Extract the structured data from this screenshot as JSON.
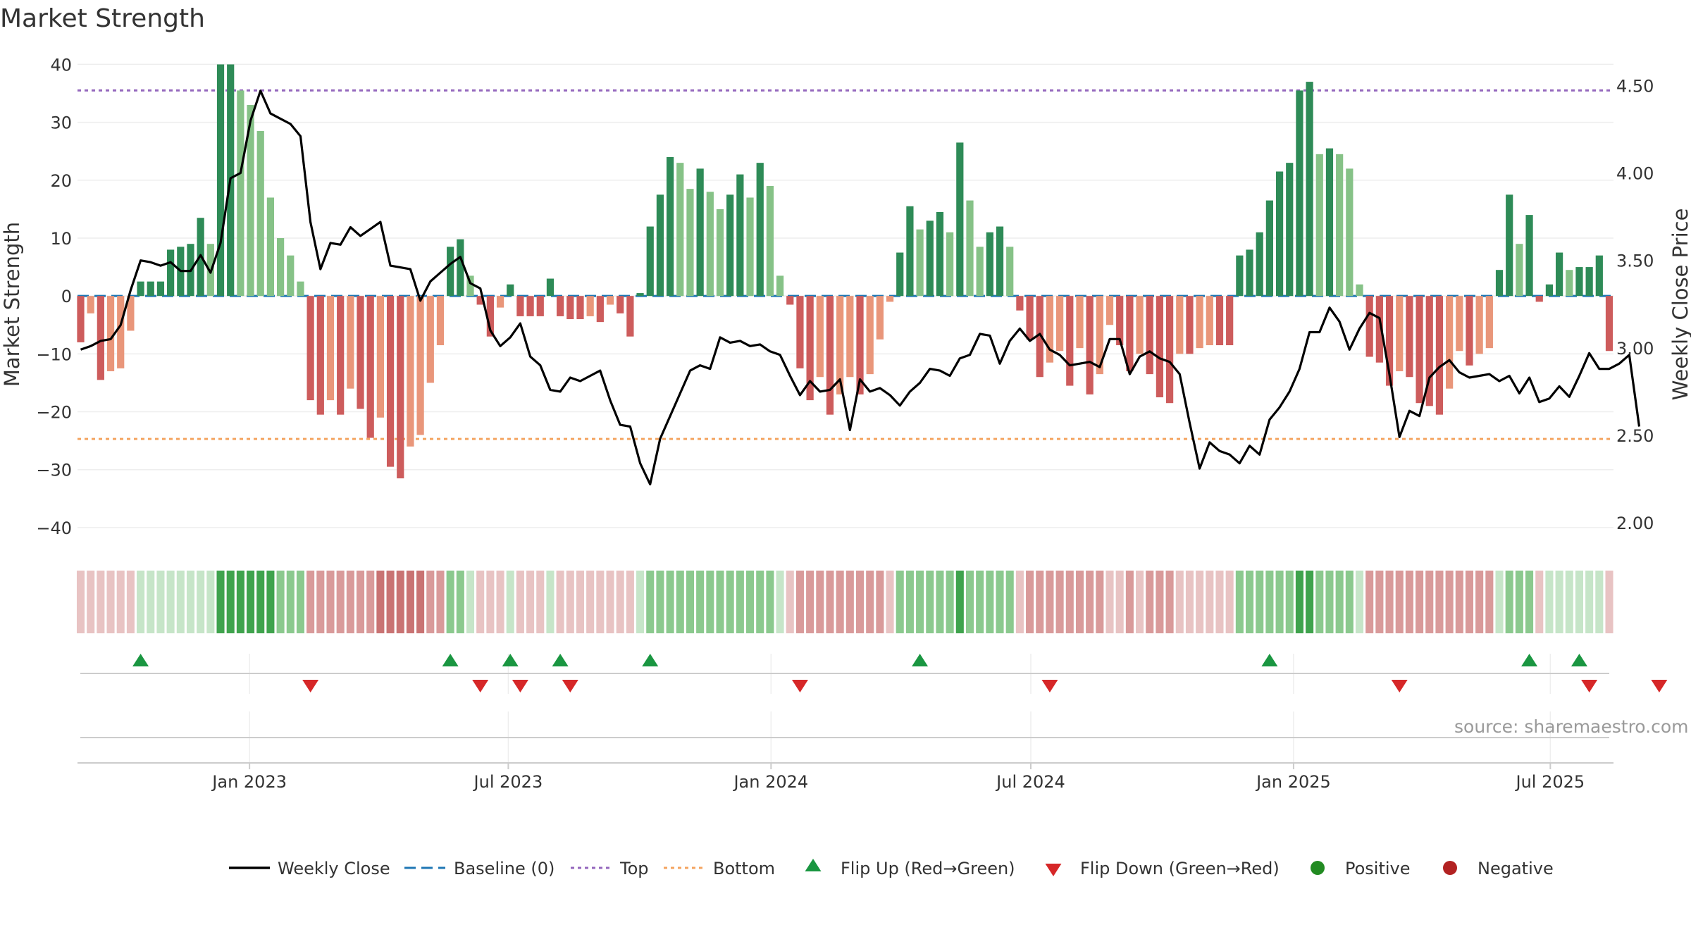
{
  "title": "Market Strength",
  "watermark": "source: sharemaestro.com",
  "colors": {
    "pos_dark": "#2e8b57",
    "pos_light": "#86c287",
    "neg_dark": "#cd5c5c",
    "neg_light": "#e9967a",
    "close": "#000000",
    "baseline": "#1f77b4",
    "top": "#9467bd",
    "bottom": "#f4a460",
    "flip_up": "#1a9641",
    "flip_down": "#d62728",
    "positive": "#228b22",
    "negative": "#b22222"
  },
  "chart_data": {
    "type": "bar",
    "title": "Market Strength",
    "ylabel": "Market Strength",
    "y2label": "Weekly Close Price",
    "ylim": [
      -45,
      42
    ],
    "y2lim": [
      1.807,
      4.687
    ],
    "yticks": [
      "40",
      "30",
      "20",
      "10",
      "0",
      "−10",
      "−20",
      "−30",
      "−40"
    ],
    "y2ticks": [
      "4.50",
      "4.00",
      "3.50",
      "3.00",
      "2.50",
      "2.00"
    ],
    "xtick_labels": [
      "Jan 2023",
      "Jul 2023",
      "Jan 2024",
      "Jul 2024",
      "Jan 2025",
      "Jul 2025"
    ],
    "xtick_weeks": [
      16.9,
      42.8,
      69.1,
      95.1,
      121.4,
      147.1
    ],
    "top_line": 35.5,
    "bottom_line": -24.7,
    "baseline": 0,
    "strength": [
      -8,
      -3,
      -14.5,
      -13,
      -12.5,
      -6,
      2.5,
      2.5,
      2.5,
      8,
      8.5,
      9,
      13.5,
      9,
      40,
      40,
      35.5,
      33,
      28.5,
      17,
      10,
      7,
      2.5,
      -18,
      -20.5,
      -18,
      -20.5,
      -16,
      -19.5,
      -24.5,
      -21,
      -29.5,
      -31.5,
      -26,
      -24,
      -15,
      -8.5,
      8.5,
      9.8,
      3.5,
      -1.5,
      -7,
      -2,
      2,
      -3.5,
      -3.5,
      -3.5,
      3,
      -3.5,
      -4,
      -4,
      -3.5,
      -4.5,
      -1.5,
      -3,
      -7,
      0.5,
      12,
      17.5,
      24,
      23,
      18.5,
      22,
      18,
      15,
      17.5,
      21,
      17,
      23,
      19,
      3.5,
      -1.5,
      -12.5,
      -18,
      -14,
      -20.5,
      -17,
      -14,
      -17,
      -13.5,
      -7.5,
      -1,
      7.5,
      15.5,
      11.5,
      13,
      14.5,
      11,
      26.5,
      16.5,
      8.5,
      11,
      12,
      8.5,
      -2.5,
      -7.5,
      -14,
      -11.5,
      -9.5,
      -15.5,
      -9,
      -17,
      -13.5,
      -5,
      -8.5,
      -13,
      -10,
      -13.5,
      -17.5,
      -18.5,
      -10,
      -10,
      -9,
      -8.5,
      -8.5,
      -8.5,
      7,
      8,
      11,
      16.5,
      21.5,
      23,
      35.5,
      37,
      24.5,
      25.5,
      24.5,
      22,
      2,
      -10.5,
      -11.5,
      -15.5,
      -13,
      -14,
      -18.5,
      -19,
      -20.5,
      -16,
      -9.5,
      -12,
      -10,
      -9,
      4.5,
      17.5,
      9,
      14,
      -1,
      2,
      7.5,
      4.5,
      5,
      5,
      7,
      -9.5
    ],
    "close": [
      2.99,
      3.01,
      3.04,
      3.05,
      3.13,
      3.33,
      3.5,
      3.49,
      3.47,
      3.49,
      3.44,
      3.44,
      3.53,
      3.43,
      3.6,
      3.97,
      4,
      4.3,
      4.47,
      4.34,
      4.31,
      4.28,
      4.21,
      3.72,
      3.45,
      3.6,
      3.59,
      3.69,
      3.64,
      3.68,
      3.72,
      3.47,
      3.46,
      3.45,
      3.27,
      3.38,
      3.43,
      3.48,
      3.52,
      3.37,
      3.34,
      3.1,
      3.01,
      3.06,
      3.14,
      2.95,
      2.9,
      2.76,
      2.75,
      2.83,
      2.81,
      2.84,
      2.87,
      2.7,
      2.56,
      2.55,
      2.34,
      2.22,
      2.48,
      2.61,
      2.74,
      2.87,
      2.9,
      2.88,
      3.06,
      3.03,
      3.04,
      3.01,
      3.02,
      2.98,
      2.96,
      2.84,
      2.73,
      2.81,
      2.75,
      2.76,
      2.82,
      2.53,
      2.82,
      2.75,
      2.77,
      2.73,
      2.67,
      2.75,
      2.8,
      2.88,
      2.87,
      2.84,
      2.94,
      2.96,
      3.08,
      3.07,
      2.91,
      3.04,
      3.11,
      3.04,
      3.08,
      2.99,
      2.96,
      2.9,
      2.91,
      2.92,
      2.89,
      3.05,
      3.05,
      2.85,
      2.95,
      2.98,
      2.94,
      2.92,
      2.85,
      2.57,
      2.31,
      2.46,
      2.41,
      2.39,
      2.34,
      2.44,
      2.39,
      2.59,
      2.66,
      2.75,
      2.88,
      3.09,
      3.09,
      3.23,
      3.15,
      2.99,
      3.11,
      3.2,
      3.17,
      2.85,
      2.49,
      2.64,
      2.61,
      2.83,
      2.89,
      2.93,
      2.86,
      2.83,
      2.84,
      2.85,
      2.81,
      2.84,
      2.74,
      2.83,
      2.69,
      2.71,
      2.78,
      2.72,
      2.84,
      2.97,
      2.88,
      2.88,
      2.91,
      2.96,
      2.55
    ],
    "strength_band": [
      -1,
      -1,
      -1,
      -1,
      -1,
      -1,
      1,
      1,
      1,
      1,
      1,
      1,
      1,
      1,
      3,
      3,
      3,
      3,
      3,
      3,
      2,
      2,
      2,
      -2,
      -2,
      -2,
      -2,
      -2,
      -2,
      -2,
      -3,
      -3,
      -3,
      -3,
      -3,
      -2,
      -2,
      2,
      2,
      1,
      -1,
      -1,
      -1,
      1,
      -1,
      -1,
      -1,
      1,
      -1,
      -1,
      -1,
      -1,
      -1,
      -1,
      -1,
      -1,
      1,
      2,
      2,
      2,
      2,
      2,
      2,
      2,
      2,
      2,
      2,
      2,
      2,
      2,
      1,
      -1,
      -2,
      -2,
      -2,
      -2,
      -2,
      -2,
      -2,
      -2,
      -2,
      -1,
      2,
      2,
      2,
      2,
      2,
      2,
      3,
      2,
      2,
      2,
      2,
      2,
      -1,
      -2,
      -2,
      -2,
      -2,
      -2,
      -2,
      -2,
      -2,
      -1,
      -1,
      -2,
      -1,
      -2,
      -2,
      -2,
      -1,
      -1,
      -1,
      -1,
      -1,
      -1,
      2,
      2,
      2,
      2,
      2,
      2,
      3,
      3,
      2,
      2,
      2,
      2,
      1,
      -2,
      -2,
      -2,
      -2,
      -2,
      -2,
      -2,
      -2,
      -2,
      -2,
      -2,
      -2,
      -2,
      1,
      2,
      2,
      2,
      -1,
      1,
      1,
      1,
      1,
      1,
      1,
      -1
    ],
    "flip_up_weeks": [
      6,
      37,
      43,
      48,
      57,
      84,
      119,
      145,
      150
    ],
    "flip_down_weeks": [
      23,
      40,
      44,
      49,
      72,
      97,
      132,
      151,
      158
    ],
    "legend": [
      "Weekly Close",
      "Baseline (0)",
      "Top",
      "Bottom",
      "Flip Up (Red→Green)",
      "Flip Down (Green→Red)",
      "Positive",
      "Negative"
    ]
  }
}
